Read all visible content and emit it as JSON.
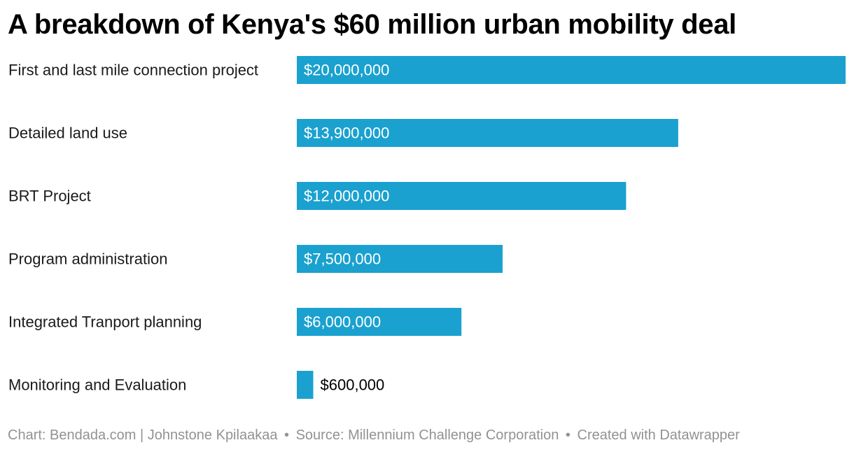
{
  "title": "A breakdown of Kenya's $60 million urban mobility deal",
  "footer": {
    "chart_credit": "Chart: Bendada.com | Johnstone Kpilaakaa",
    "separator": "•",
    "source": "Source: Millennium Challenge Corporation",
    "created_with": "Created with Datawrapper"
  },
  "colors": {
    "bar": "#1aa1cf",
    "label_inside": "#ffffff",
    "label_outside": "#000000",
    "category_text": "#1a1a1a",
    "footer_text": "#929292"
  },
  "chart_data": {
    "type": "bar",
    "orientation": "horizontal",
    "title": "A breakdown of Kenya's $60 million urban mobility deal",
    "categories": [
      "First and last mile connection project",
      "Detailed land use",
      "BRT Project",
      "Program administration",
      "Integrated Tranport planning",
      "Monitoring and Evaluation"
    ],
    "values": [
      20000000,
      13900000,
      12000000,
      7500000,
      6000000,
      600000
    ],
    "value_labels": [
      "$20,000,000",
      "$13,900,000",
      "$12,000,000",
      "$7,500,000",
      "$6,000,000",
      "$600,000"
    ],
    "xlim": [
      0,
      20000000
    ],
    "xlabel": "",
    "ylabel": "",
    "grid": false,
    "legend": "none"
  }
}
